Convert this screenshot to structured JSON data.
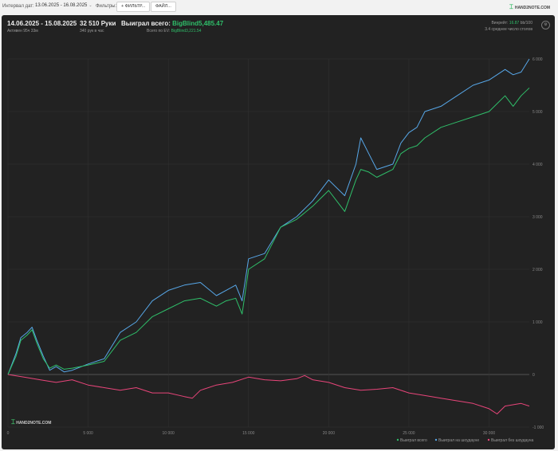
{
  "toolbar": {
    "date_label": "Интервал дат:",
    "date_value": "13.06.2025 - 16.08.2025",
    "filters_label": "Фильтры:",
    "filter_button": "ФИЛЬТР...",
    "file_button": "ФАЙЛ...",
    "brand": "HAND2NOTE.COM"
  },
  "summary": {
    "period": "14.06.2025 - 15.08.2025",
    "active": "Активен 95ч 33м",
    "hands": "32 510 Руки",
    "hands_rate": "340 рук в час",
    "won_label": "Выиграл всего:",
    "won_value": "BigBlind5,485.47",
    "ev_label": "Всего по EV:",
    "ev_value": "BigBlind3,221.54",
    "winrate_label": "Винрейт:",
    "winrate_value": "16.87",
    "winrate_suffix": "bb/100",
    "tables_label": "3.4 среднее число столов"
  },
  "watermark": "HAND2NOTE.COM",
  "legend": [
    {
      "label": "Выиграл всего",
      "color": "#2fbf6a"
    },
    {
      "label": "Выиграл на шоудауне",
      "color": "#57a7e8"
    },
    {
      "label": "Выиграл без шоудауна",
      "color": "#e8457a"
    }
  ],
  "chart_data": {
    "type": "line",
    "x_ticks": [
      "0",
      "5 000",
      "10 000",
      "15 000",
      "20 000",
      "25 000",
      "30 000"
    ],
    "y_ticks": [
      "-1 000",
      "0",
      "1 000",
      "2 000",
      "3 000",
      "4 000",
      "5 000",
      "6 000"
    ],
    "xlim": [
      0,
      32510
    ],
    "ylim": [
      -1000,
      6000
    ],
    "grid": true,
    "legend_position": "bottom-right",
    "series": [
      {
        "name": "Выиграл на шоудауне",
        "color": "#57a7e8",
        "x": [
          0,
          500,
          800,
          1200,
          1500,
          1800,
          2200,
          2600,
          3000,
          3500,
          4000,
          5000,
          6000,
          7000,
          8000,
          9000,
          10000,
          11000,
          12000,
          13000,
          13600,
          14200,
          14600,
          15000,
          16000,
          17000,
          18000,
          19000,
          20000,
          21000,
          21700,
          22000,
          22500,
          23000,
          24000,
          24500,
          25000,
          25500,
          26000,
          27000,
          28000,
          29000,
          30000,
          31000,
          31500,
          32000,
          32510
        ],
        "y": [
          0,
          400,
          700,
          800,
          900,
          650,
          350,
          80,
          150,
          50,
          80,
          200,
          300,
          800,
          1000,
          1400,
          1600,
          1700,
          1750,
          1500,
          1600,
          1700,
          1400,
          2200,
          2300,
          2800,
          3000,
          3300,
          3700,
          3400,
          4000,
          4500,
          4200,
          3900,
          4000,
          4400,
          4600,
          4700,
          5000,
          5100,
          5300,
          5500,
          5600,
          5800,
          5700,
          5750,
          6000
        ]
      },
      {
        "name": "Выиграл всего",
        "color": "#2fbf6a",
        "x": [
          0,
          500,
          800,
          1200,
          1500,
          1800,
          2200,
          2600,
          3000,
          3500,
          4000,
          5000,
          6000,
          7000,
          8000,
          9000,
          10000,
          11000,
          12000,
          13000,
          13600,
          14200,
          14600,
          15000,
          16000,
          17000,
          18000,
          19000,
          20000,
          21000,
          21700,
          22000,
          22500,
          23000,
          24000,
          24500,
          25000,
          25500,
          26000,
          27000,
          28000,
          29000,
          30000,
          31000,
          31500,
          32000,
          32510
        ],
        "y": [
          0,
          350,
          650,
          750,
          850,
          600,
          300,
          120,
          180,
          100,
          120,
          180,
          250,
          650,
          800,
          1100,
          1250,
          1400,
          1450,
          1300,
          1400,
          1450,
          1150,
          2000,
          2200,
          2800,
          2950,
          3200,
          3500,
          3100,
          3700,
          3900,
          3850,
          3750,
          3900,
          4200,
          4300,
          4350,
          4500,
          4700,
          4800,
          4900,
          5000,
          5300,
          5100,
          5300,
          5450
        ]
      },
      {
        "name": "Выиграл без шоудауна",
        "color": "#e8457a",
        "x": [
          0,
          1000,
          2000,
          3000,
          4000,
          5000,
          6000,
          7000,
          8000,
          9000,
          10000,
          11000,
          11500,
          12000,
          13000,
          14000,
          15000,
          16000,
          17000,
          18000,
          18500,
          19000,
          20000,
          21000,
          22000,
          23000,
          24000,
          25000,
          26000,
          27000,
          28000,
          29000,
          30000,
          30500,
          31000,
          32000,
          32510
        ],
        "y": [
          0,
          -50,
          -100,
          -150,
          -100,
          -200,
          -250,
          -300,
          -250,
          -350,
          -350,
          -420,
          -450,
          -300,
          -200,
          -150,
          -50,
          -100,
          -120,
          -80,
          -20,
          -100,
          -150,
          -250,
          -300,
          -280,
          -250,
          -350,
          -400,
          -450,
          -500,
          -550,
          -650,
          -750,
          -600,
          -550,
          -600
        ]
      }
    ]
  }
}
